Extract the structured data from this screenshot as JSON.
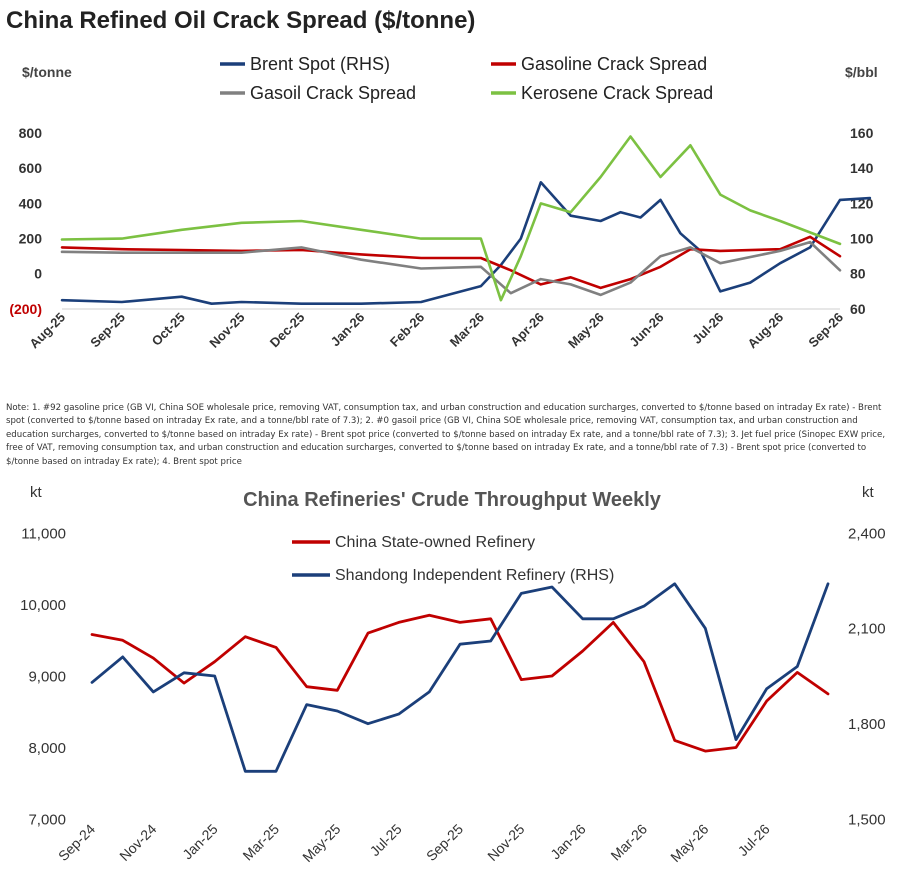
{
  "colors": {
    "brent": "#1b3f7a",
    "gasoline": "#c00000",
    "gasoil": "#808080",
    "kerosene": "#7cc142",
    "china_soe": "#c00000",
    "shandong": "#1b3f7a",
    "negative_label": "#c00000"
  },
  "note": "Note: 1. #92 gasoline price (GB VI, China SOE wholesale price, removing VAT, consumption tax, and urban construction and education surcharges, converted to $/tonne based on intraday Ex rate) - Brent spot (converted to $/tonne based on intraday Ex rate, and a tonne/bbl rate of 7.3); 2. #0 gasoil price (GB VI, China SOE wholesale price, removing VAT, consumption tax, and urban construction and education surcharges, converted to $/tonne based on intraday Ex rate) - Brent spot price (converted to $/tonne based on intraday Ex rate, and a tonne/bbl rate of 7.3); 3. Jet fuel price (Sinopec EXW price, free of VAT, removing consumption tax, and urban construction and education surcharges, converted to $/tonne based on intraday Ex rate, and a tonne/bbl rate of 7.3) - Brent spot price (converted to $/tonne based on intraday Ex rate); 4. Brent spot price",
  "chart_data": [
    {
      "type": "line",
      "title": "China Refined Oil Crack Spread ($/tonne)",
      "ylabel": "$/tonne",
      "y2label": "$/bbl",
      "ylim": [
        -200,
        800
      ],
      "y_ticks": [
        800,
        600,
        400,
        200,
        0,
        -200
      ],
      "y_tick_labels": [
        "800",
        "600",
        "400",
        "200",
        "0",
        "(200)"
      ],
      "y2lim": [
        60,
        160
      ],
      "y2_ticks": [
        160,
        140,
        120,
        100,
        80,
        60
      ],
      "x_tick_labels": [
        "Aug-25",
        "Sep-25",
        "Oct-25",
        "Nov-25",
        "Dec-25",
        "Jan-26",
        "Feb-26",
        "Mar-26",
        "Apr-26",
        "May-26",
        "Jun-26",
        "Jul-26",
        "Aug-26",
        "Sep-26"
      ],
      "x_range": [
        "Aug-25",
        "Sep-26"
      ],
      "legend_position": "top",
      "grid": false,
      "series": [
        {
          "name": "Brent Spot (RHS)",
          "axis": "right",
          "color_key": "brent",
          "x": [
            "Aug-25",
            "Sep-25",
            "Oct-25",
            "Oct-25",
            "Nov-25",
            "Dec-25",
            "Jan-26",
            "Feb-26",
            "Mar-26",
            "Mar-26",
            "Mar-26",
            "Apr-26",
            "Apr-26",
            "May-26",
            "May-26",
            "May-26",
            "Jun-26",
            "Jun-26",
            "Jun-26",
            "Jul-26",
            "Jul-26",
            "Aug-26",
            "Aug-26",
            "Sep-26",
            "Sep-26"
          ],
          "values": [
            65,
            64,
            67,
            63,
            64,
            63,
            63,
            64,
            73,
            85,
            100,
            132,
            113,
            110,
            115,
            112,
            122,
            103,
            93,
            70,
            75,
            86,
            95,
            122,
            123
          ]
        },
        {
          "name": "Gasoline Crack Spread",
          "axis": "left",
          "color_key": "gasoline",
          "x": [
            "Aug-25",
            "Sep-25",
            "Oct-25",
            "Nov-25",
            "Dec-25",
            "Jan-26",
            "Feb-26",
            "Mar-26",
            "Mar-26",
            "Apr-26",
            "Apr-26",
            "May-26",
            "May-26",
            "Jun-26",
            "Jun-26",
            "Jul-26",
            "Aug-26",
            "Aug-26",
            "Sep-26"
          ],
          "values": [
            150,
            140,
            135,
            130,
            135,
            110,
            90,
            90,
            20,
            -60,
            -20,
            -80,
            -30,
            40,
            140,
            130,
            140,
            210,
            100
          ]
        },
        {
          "name": "Gasoil Crack Spread",
          "axis": "left",
          "color_key": "gasoil",
          "x": [
            "Aug-25",
            "Sep-25",
            "Oct-25",
            "Nov-25",
            "Dec-25",
            "Jan-26",
            "Feb-26",
            "Mar-26",
            "Mar-26",
            "Apr-26",
            "Apr-26",
            "May-26",
            "May-26",
            "Jun-26",
            "Jun-26",
            "Jul-26",
            "Aug-26",
            "Aug-26",
            "Sep-26"
          ],
          "values": [
            125,
            120,
            120,
            120,
            150,
            80,
            30,
            40,
            -110,
            -30,
            -60,
            -120,
            -50,
            100,
            150,
            60,
            130,
            180,
            20
          ]
        },
        {
          "name": "Kerosene Crack Spread",
          "axis": "left",
          "color_key": "kerosene",
          "x": [
            "Aug-25",
            "Sep-25",
            "Oct-25",
            "Nov-25",
            "Dec-25",
            "Jan-26",
            "Feb-26",
            "Mar-26",
            "Mar-26",
            "Mar-26",
            "Apr-26",
            "Apr-26",
            "May-26",
            "May-26",
            "Jun-26",
            "Jun-26",
            "Jul-26",
            "Jul-26",
            "Aug-26",
            "Sep-26"
          ],
          "values": [
            195,
            200,
            250,
            290,
            300,
            250,
            200,
            200,
            -150,
            100,
            400,
            350,
            550,
            780,
            550,
            730,
            450,
            360,
            300,
            170
          ]
        }
      ]
    },
    {
      "type": "line",
      "title": "China Refineries' Crude Throughput Weekly",
      "ylabel": "kt",
      "y2label": "kt",
      "ylim": [
        7000,
        11000
      ],
      "y_ticks": [
        11000,
        10000,
        9000,
        8000,
        7000
      ],
      "y_tick_labels": [
        "11,000",
        "10,000",
        "9,000",
        "8,000",
        "7,000"
      ],
      "y2lim": [
        1500,
        2400
      ],
      "y2_ticks": [
        2400,
        2100,
        1800,
        1500
      ],
      "y2_tick_labels": [
        "2,400",
        "2,100",
        "1,800",
        "1,500"
      ],
      "x_tick_labels": [
        "Sep-24",
        "Nov-24",
        "Jan-25",
        "Mar-25",
        "May-25",
        "Jul-25",
        "Sep-25",
        "Nov-25",
        "Jan-26",
        "Mar-26",
        "May-26",
        "Jul-26"
      ],
      "x_range": [
        "Sep-24",
        "Sep-26"
      ],
      "legend_position": "top-center",
      "grid": false,
      "series": [
        {
          "name": "China State-owned Refinery",
          "axis": "left",
          "color_key": "china_soe",
          "x": [
            "Sep-24",
            "Oct-24",
            "Nov-24",
            "Dec-24",
            "Jan-25",
            "Feb-25",
            "Mar-25",
            "Apr-25",
            "May-25",
            "Jun-25",
            "Jul-25",
            "Aug-25",
            "Sep-25",
            "Oct-25",
            "Nov-25",
            "Dec-25",
            "Jan-26",
            "Feb-26",
            "Mar-26",
            "Apr-26",
            "May-26",
            "Jun-26",
            "Jul-26",
            "Aug-26",
            "Sep-26"
          ],
          "values": [
            9580,
            9500,
            9250,
            8900,
            9200,
            9550,
            9400,
            8850,
            8800,
            9600,
            9750,
            9850,
            9750,
            9800,
            8950,
            9000,
            9350,
            9750,
            9200,
            8100,
            7950,
            8000,
            8650,
            9050,
            8750
          ]
        },
        {
          "name": "Shandong Independent Refinery (RHS)",
          "axis": "right",
          "color_key": "shandong",
          "x": [
            "Sep-24",
            "Oct-24",
            "Nov-24",
            "Dec-24",
            "Jan-25",
            "Feb-25",
            "Mar-25",
            "Apr-25",
            "May-25",
            "Jun-25",
            "Jul-25",
            "Aug-25",
            "Sep-25",
            "Oct-25",
            "Nov-25",
            "Dec-25",
            "Jan-26",
            "Feb-26",
            "Mar-26",
            "Apr-26",
            "May-26",
            "Jun-26",
            "Jul-26",
            "Aug-26",
            "Sep-26"
          ],
          "values": [
            1930,
            2010,
            1900,
            1960,
            1950,
            1650,
            1650,
            1860,
            1840,
            1800,
            1830,
            1900,
            2050,
            2060,
            2210,
            2230,
            2130,
            2130,
            2170,
            2240,
            2100,
            1750,
            1910,
            1980,
            2240
          ]
        }
      ]
    }
  ]
}
